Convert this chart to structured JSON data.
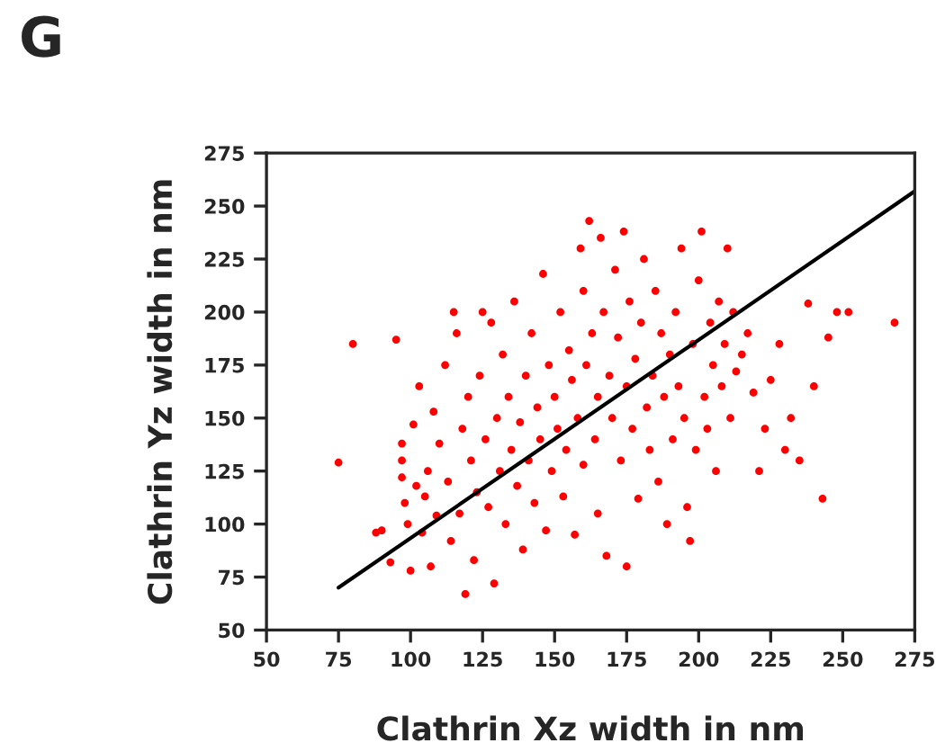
{
  "chart_data": {
    "type": "scatter",
    "xlabel": "Clathrin Xz width in nm",
    "ylabel": "Clathrin Yz width in nm",
    "annotations": [
      "G"
    ],
    "xlim": [
      50,
      275
    ],
    "xticks": [
      50,
      75,
      100,
      125,
      150,
      175,
      200,
      225,
      250,
      275
    ],
    "ylim": [
      50,
      275
    ],
    "yticks": [
      50,
      75,
      100,
      125,
      150,
      175,
      200,
      225,
      250,
      275
    ],
    "grid": false,
    "marker": "circle",
    "series": [
      {
        "color": "#ff0000",
        "x": [
          75,
          80,
          88,
          90,
          93,
          95,
          97,
          97,
          97,
          98,
          99,
          100,
          101,
          102,
          103,
          104,
          105,
          106,
          107,
          108,
          109,
          110,
          112,
          113,
          114,
          115,
          116,
          117,
          118,
          119,
          120,
          121,
          122,
          123,
          124,
          125,
          126,
          127,
          128,
          129,
          130,
          131,
          132,
          133,
          134,
          135,
          136,
          137,
          138,
          139,
          140,
          141,
          142,
          143,
          144,
          145,
          146,
          147,
          148,
          149,
          150,
          151,
          152,
          153,
          154,
          155,
          156,
          157,
          158,
          159,
          160,
          160,
          161,
          162,
          163,
          164,
          165,
          165,
          166,
          167,
          168,
          169,
          170,
          171,
          172,
          173,
          174,
          175,
          175,
          176,
          177,
          178,
          179,
          180,
          181,
          182,
          183,
          184,
          185,
          186,
          187,
          188,
          189,
          190,
          191,
          192,
          193,
          194,
          195,
          196,
          197,
          198,
          199,
          200,
          201,
          202,
          203,
          204,
          205,
          206,
          207,
          208,
          209,
          210,
          211,
          212,
          213,
          215,
          217,
          219,
          221,
          223,
          225,
          228,
          230,
          232,
          235,
          238,
          240,
          243,
          245,
          248,
          252,
          268
        ],
        "values": [
          129,
          185,
          96,
          97,
          82,
          187,
          130,
          122,
          138,
          110,
          100,
          78,
          147,
          118,
          165,
          96,
          113,
          125,
          80,
          153,
          104,
          138,
          175,
          120,
          92,
          200,
          190,
          105,
          145,
          67,
          160,
          130,
          83,
          115,
          170,
          200,
          140,
          108,
          195,
          72,
          150,
          125,
          180,
          100,
          160,
          135,
          205,
          118,
          148,
          88,
          170,
          130,
          190,
          110,
          155,
          140,
          218,
          97,
          175,
          125,
          160,
          145,
          200,
          113,
          135,
          182,
          168,
          95,
          150,
          230,
          210,
          128,
          175,
          243,
          190,
          140,
          160,
          105,
          235,
          200,
          85,
          170,
          150,
          220,
          188,
          130,
          238,
          80,
          165,
          205,
          145,
          178,
          112,
          195,
          225,
          155,
          135,
          170,
          210,
          120,
          190,
          160,
          100,
          180,
          140,
          200,
          165,
          230,
          150,
          108,
          92,
          185,
          135,
          215,
          238,
          160,
          145,
          195,
          175,
          125,
          205,
          165,
          185,
          230,
          150,
          200,
          172,
          180,
          190,
          162,
          125,
          145,
          168,
          185,
          135,
          150,
          130,
          204,
          165,
          112,
          188,
          200,
          200,
          195
        ]
      },
      {
        "type": "line",
        "color": "#000000",
        "x": [
          75,
          275
        ],
        "values": [
          70,
          257
        ],
        "marker": "none"
      }
    ]
  }
}
